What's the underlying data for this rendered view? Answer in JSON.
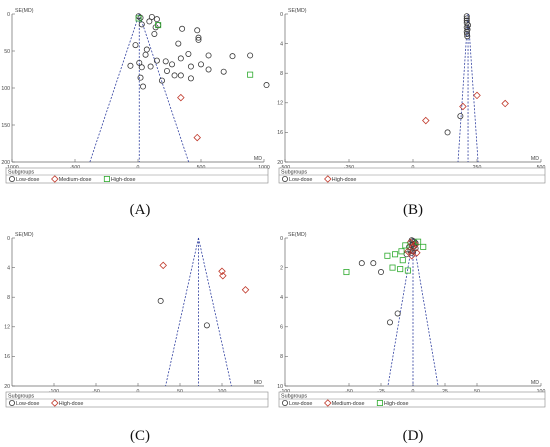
{
  "colors": {
    "low": "#3a3a3a",
    "medium": "#c0392b",
    "high": "#2eaa2e",
    "funnel": "#3040a0",
    "axis": "#666666"
  },
  "chart_data": [
    {
      "type": "scatter",
      "panel_label": "(A)",
      "xlabel": "MD",
      "ylabel": "SE(MD)",
      "xlim": [
        -1000,
        1000
      ],
      "ylim": [
        200,
        0
      ],
      "xticks": [
        -1000,
        -500,
        0,
        500,
        1000
      ],
      "yticks": [
        0,
        50,
        100,
        150,
        200
      ],
      "x_tick_labels": [
        "-1000",
        "-500",
        "0",
        "500",
        "1000"
      ],
      "y_tick_labels": [
        "0",
        "50",
        "100",
        "150",
        "200"
      ],
      "summary_md": 10,
      "legend_title": "Subgroups",
      "legend": [
        {
          "name": "Low-dose",
          "marker": "circle",
          "color": "#3a3a3a"
        },
        {
          "name": "Medium-dose",
          "marker": "diamond",
          "color": "#c0392b"
        },
        {
          "name": "High-dose",
          "marker": "square",
          "color": "#2eaa2e"
        }
      ],
      "series": [
        {
          "name": "Low-dose",
          "points": [
            [
              5,
              3
            ],
            [
              20,
              5
            ],
            [
              110,
              4
            ],
            [
              150,
              7
            ],
            [
              90,
              10
            ],
            [
              30,
              14
            ],
            [
              160,
              15
            ],
            [
              140,
              18
            ],
            [
              350,
              20
            ],
            [
              470,
              22
            ],
            [
              130,
              27
            ],
            [
              480,
              32
            ],
            [
              480,
              35
            ],
            [
              320,
              40
            ],
            [
              -20,
              42
            ],
            [
              70,
              48
            ],
            [
              400,
              54
            ],
            [
              60,
              55
            ],
            [
              560,
              56
            ],
            [
              750,
              57
            ],
            [
              890,
              56
            ],
            [
              340,
              60
            ],
            [
              150,
              63
            ],
            [
              220,
              64
            ],
            [
              10,
              66
            ],
            [
              270,
              68
            ],
            [
              500,
              68
            ],
            [
              420,
              71
            ],
            [
              100,
              71
            ],
            [
              30,
              72
            ],
            [
              560,
              75
            ],
            [
              -60,
              70
            ],
            [
              230,
              77
            ],
            [
              290,
              83
            ],
            [
              340,
              83
            ],
            [
              420,
              87
            ],
            [
              20,
              86
            ],
            [
              190,
              90
            ],
            [
              40,
              98
            ],
            [
              1020,
              96
            ],
            [
              680,
              78
            ]
          ]
        },
        {
          "name": "Medium-dose",
          "points": [
            [
              340,
              113
            ],
            [
              470,
              167
            ]
          ]
        },
        {
          "name": "High-dose",
          "points": [
            [
              5,
              6
            ],
            [
              160,
              15
            ],
            [
              890,
              82
            ]
          ]
        }
      ]
    },
    {
      "type": "scatter",
      "panel_label": "(B)",
      "xlabel": "MD",
      "ylabel": "SE(MD)",
      "xlim": [
        -500,
        500
      ],
      "ylim": [
        20,
        0
      ],
      "xticks": [
        -500,
        -250,
        0,
        250,
        500
      ],
      "yticks": [
        0,
        4,
        8,
        12,
        16,
        20
      ],
      "x_tick_labels": [
        "-500",
        "-250",
        "0",
        "250",
        "500"
      ],
      "y_tick_labels": [
        "0",
        "4",
        "8",
        "12",
        "16",
        "20"
      ],
      "summary_md": 215,
      "legend_title": "Subgroups",
      "legend": [
        {
          "name": "Low-dose",
          "marker": "circle",
          "color": "#3a3a3a"
        },
        {
          "name": "High-dose",
          "marker": "diamond",
          "color": "#c0392b"
        }
      ],
      "series": [
        {
          "name": "Low-dose",
          "points": [
            [
              210,
              0.3
            ],
            [
              210,
              0.6
            ],
            [
              210,
              0.9
            ],
            [
              210,
              1.2
            ],
            [
              215,
              1.5
            ],
            [
              210,
              1.8
            ],
            [
              213,
              2.1
            ],
            [
              210,
              2.4
            ],
            [
              211,
              2.7
            ],
            [
              212,
              3.0
            ],
            [
              185,
              13.8
            ],
            [
              135,
              16.0
            ]
          ]
        },
        {
          "name": "High-dose",
          "points": [
            [
              195,
              12.5
            ],
            [
              250,
              11.0
            ],
            [
              360,
              12.1
            ],
            [
              50,
              14.4
            ]
          ]
        }
      ]
    },
    {
      "type": "scatter",
      "panel_label": "(C)",
      "xlabel": "MD",
      "ylabel": "SE(MD)",
      "xlim": [
        -150,
        150
      ],
      "ylim": [
        20,
        0
      ],
      "xticks": [
        -100,
        -50,
        0,
        50,
        100
      ],
      "yticks": [
        0,
        4,
        8,
        12,
        16,
        20
      ],
      "x_tick_labels": [
        "-100",
        "-50",
        "0",
        "50",
        "100"
      ],
      "y_tick_labels": [
        "0",
        "4",
        "8",
        "12",
        "16",
        "20"
      ],
      "summary_md": 72,
      "legend_title": "Subgroups",
      "legend": [
        {
          "name": "Low-dose",
          "marker": "circle",
          "color": "#3a3a3a"
        },
        {
          "name": "High-dose",
          "marker": "diamond",
          "color": "#c0392b"
        }
      ],
      "series": [
        {
          "name": "Low-dose",
          "points": [
            [
              27,
              8.5
            ],
            [
              82,
              11.8
            ]
          ]
        },
        {
          "name": "High-dose",
          "points": [
            [
              30,
              3.7
            ],
            [
              100,
              4.5
            ],
            [
              101,
              5.1
            ],
            [
              128,
              7.0
            ]
          ]
        }
      ]
    },
    {
      "type": "scatter",
      "panel_label": "(D)",
      "xlabel": "MD",
      "ylabel": "SE(MD)",
      "xlim": [
        -100,
        100
      ],
      "ylim": [
        10,
        0
      ],
      "xticks": [
        -100,
        -50,
        -25,
        0,
        25,
        50,
        100
      ],
      "yticks": [
        0,
        2,
        4,
        6,
        8,
        10
      ],
      "x_tick_labels": [
        "-100",
        "-50",
        "-25",
        "0",
        "25",
        "50",
        "100"
      ],
      "y_tick_labels": [
        "0",
        "2",
        "4",
        "6",
        "8",
        "10"
      ],
      "summary_md": 0,
      "legend_title": "Subgroups",
      "legend": [
        {
          "name": "Low-dose",
          "marker": "circle",
          "color": "#3a3a3a"
        },
        {
          "name": "Medium-dose",
          "marker": "diamond",
          "color": "#c0392b"
        },
        {
          "name": "High-dose",
          "marker": "square",
          "color": "#2eaa2e"
        }
      ],
      "series": [
        {
          "name": "Low-dose",
          "points": [
            [
              -1,
              0.15
            ],
            [
              0,
              0.2
            ],
            [
              1,
              0.25
            ],
            [
              -2,
              0.3
            ],
            [
              2,
              0.35
            ],
            [
              0,
              0.4
            ],
            [
              -1,
              0.5
            ],
            [
              1,
              0.55
            ],
            [
              -3,
              0.6
            ],
            [
              2,
              0.7
            ],
            [
              -2,
              0.8
            ],
            [
              0,
              0.9
            ],
            [
              -1,
              1.0
            ],
            [
              -5,
              1.1
            ],
            [
              -40,
              1.7
            ],
            [
              -31,
              1.7
            ],
            [
              -25,
              2.3
            ],
            [
              -12,
              5.1
            ],
            [
              -18,
              5.7
            ]
          ]
        },
        {
          "name": "Medium-dose",
          "points": [
            [
              -2,
              0.3
            ],
            [
              2,
              0.45
            ],
            [
              0,
              0.6
            ],
            [
              -4,
              0.9
            ],
            [
              3,
              1.0
            ],
            [
              -1,
              1.2
            ]
          ]
        },
        {
          "name": "High-dose",
          "points": [
            [
              4,
              0.25
            ],
            [
              -6,
              0.5
            ],
            [
              8,
              0.6
            ],
            [
              -9,
              0.9
            ],
            [
              -14,
              1.1
            ],
            [
              -20,
              1.2
            ],
            [
              -8,
              1.5
            ],
            [
              -16,
              2.0
            ],
            [
              -10,
              2.1
            ],
            [
              -52,
              2.3
            ],
            [
              -4,
              2.2
            ]
          ]
        }
      ]
    }
  ]
}
